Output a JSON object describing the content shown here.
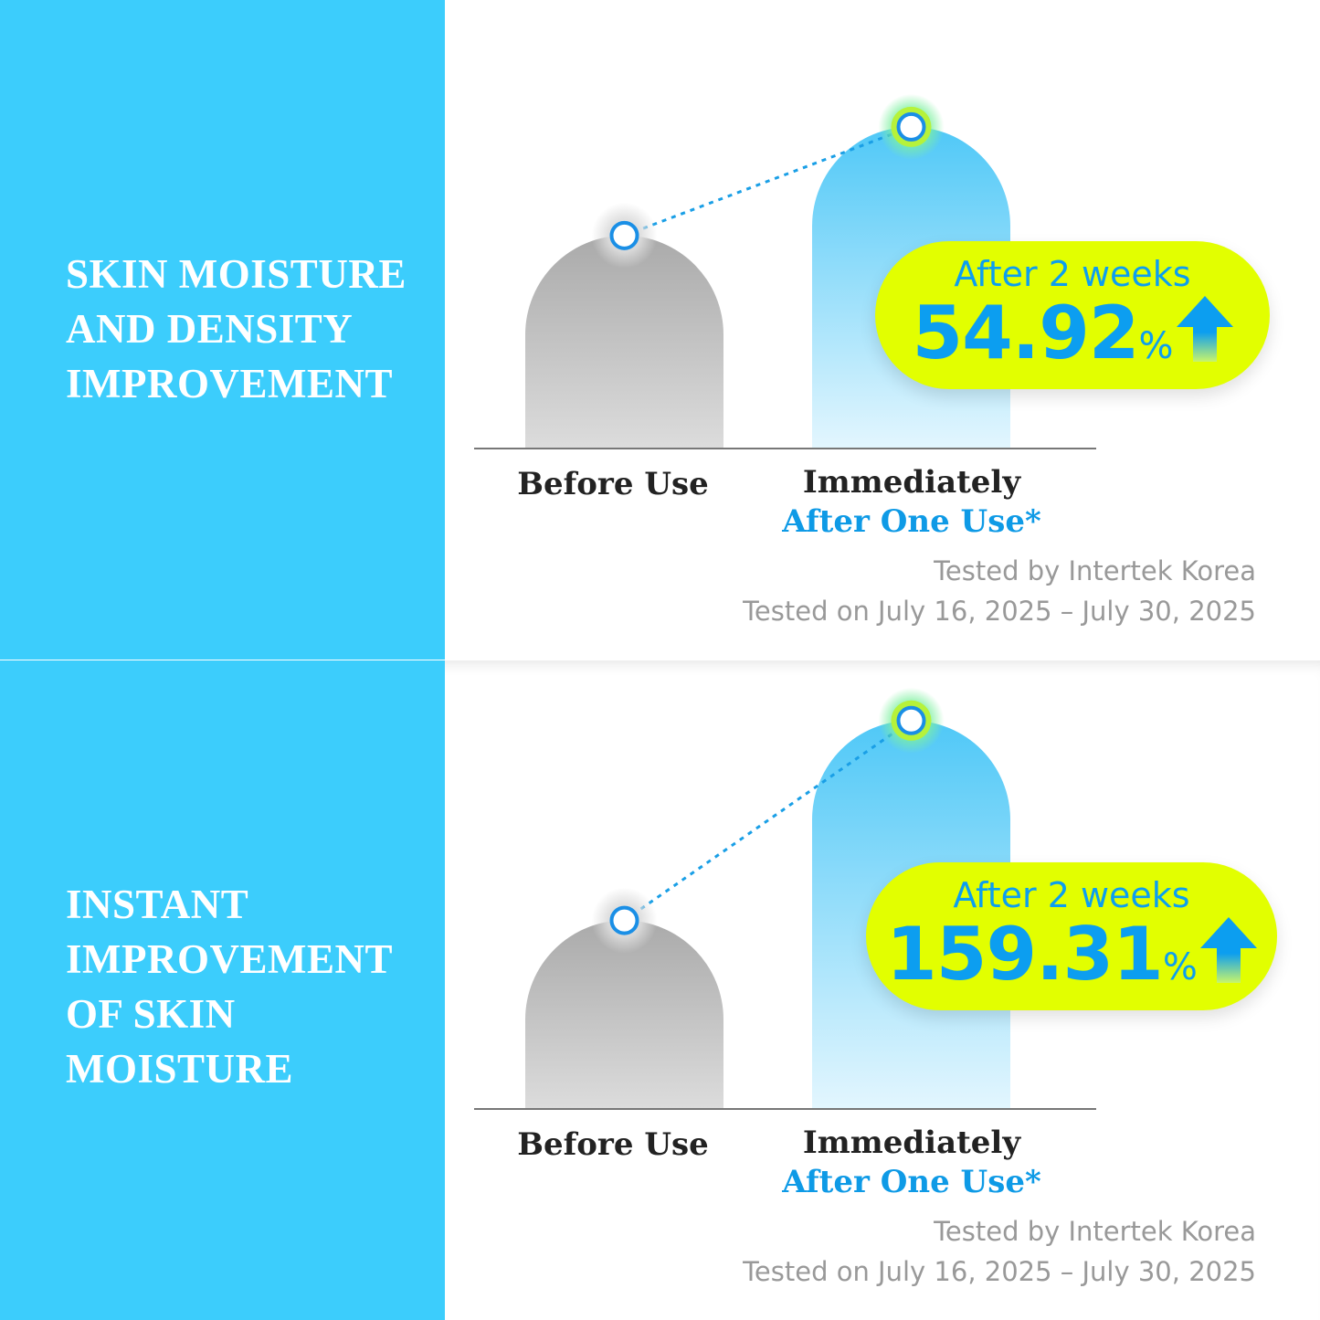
{
  "colors": {
    "side_panel": "#3ccdfc",
    "pill": "#e2ff00",
    "accent_blue": "#0e9ae6",
    "before_bar": "#b0b0b0",
    "after_bar": "#5fcff8"
  },
  "panels": [
    {
      "title_lines": [
        "SKIN MOISTURE",
        "AND DENSITY",
        "IMPROVEMENT"
      ],
      "badge": {
        "label": "After 2 weeks",
        "value": "54.92",
        "unit": "%",
        "icon": "arrow-up-icon"
      },
      "labels": {
        "before": "Before Use",
        "after_line1": "Immediately",
        "after_line2": "After One Use*"
      },
      "notes": [
        "Tested by Intertek Korea",
        "Tested on July 16, 2025 – July 30, 2025"
      ]
    },
    {
      "title_lines": [
        "INSTANT",
        "IMPROVEMENT",
        "OF SKIN",
        "MOISTURE"
      ],
      "badge": {
        "label": "After 2 weeks",
        "value": "159.31",
        "unit": "%",
        "icon": "arrow-up-icon"
      },
      "labels": {
        "before": "Before Use",
        "after_line1": "Immediately",
        "after_line2": "After One Use*"
      },
      "notes": [
        "Tested by Intertek Korea",
        "Tested on July 16, 2025 – July 30, 2025"
      ]
    }
  ],
  "chart_data": [
    {
      "type": "bar",
      "title": "SKIN MOISTURE AND DENSITY IMPROVEMENT",
      "categories": [
        "Before Use",
        "Immediately After One Use*"
      ],
      "values": [
        100,
        151
      ],
      "ylim": [
        0,
        193
      ],
      "annotation": "After 2 weeks 54.92%",
      "grid": false,
      "legend": "none"
    },
    {
      "type": "bar",
      "title": "INSTANT IMPROVEMENT OF SKIN MOISTURE",
      "categories": [
        "Before Use",
        "Immediately After One Use*"
      ],
      "values": [
        100,
        206
      ],
      "ylim": [
        0,
        218
      ],
      "annotation": "After 2 weeks 159.31%",
      "grid": false,
      "legend": "none"
    }
  ]
}
